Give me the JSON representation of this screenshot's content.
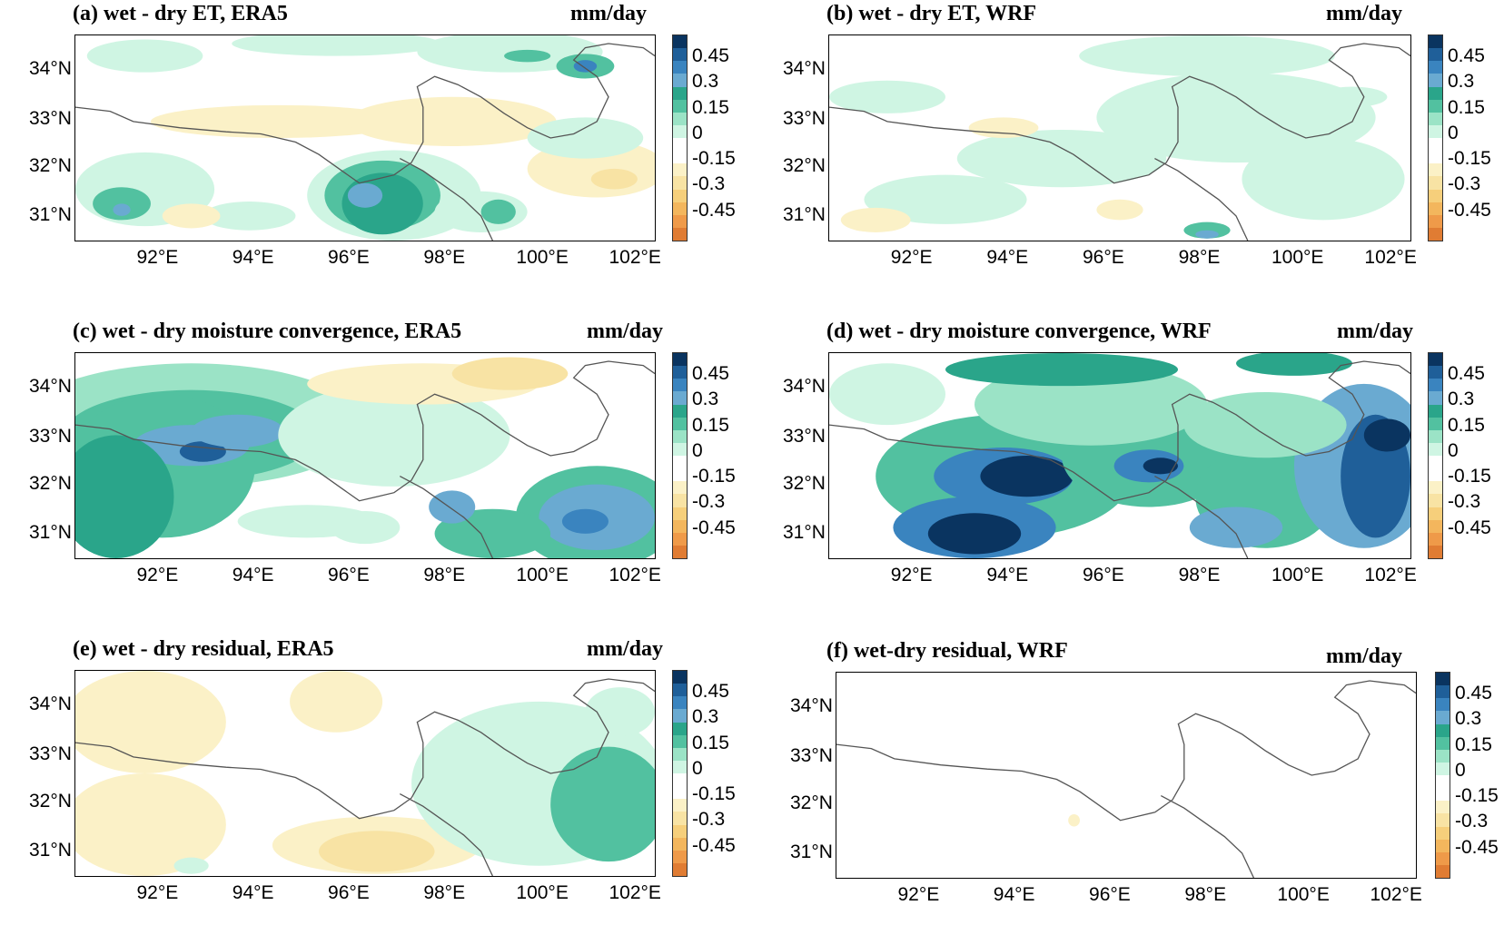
{
  "units": "mm/day",
  "lat_labels": [
    "34°N",
    "33°N",
    "32°N",
    "31°N"
  ],
  "lon_labels": [
    "92°E",
    "94°E",
    "96°E",
    "98°E",
    "100°E",
    "102°E"
  ],
  "colorbar": {
    "labels": [
      "0.45",
      "0.3",
      "0.15",
      "0",
      "-0.15",
      "-0.3",
      "-0.45"
    ],
    "colors": [
      "#0a3460",
      "#1f5f99",
      "#3a84bf",
      "#6aaad1",
      "#2aa58a",
      "#52c1a0",
      "#9be3c6",
      "#cff5e3",
      "#ffffff",
      "#ffffff",
      "#fbf1c7",
      "#f8e3a4",
      "#f6cf7b",
      "#f3b65d",
      "#ef9a49",
      "#e07c33"
    ]
  },
  "panels": [
    {
      "id": "a",
      "title": "(a)  wet - dry ET, ERA5",
      "pattern": "a"
    },
    {
      "id": "b",
      "title": "(b)  wet - dry ET, WRF",
      "pattern": "b"
    },
    {
      "id": "c",
      "title": "(c)  wet - dry moisture convergence, ERA5",
      "pattern": "c"
    },
    {
      "id": "d",
      "title": "(d)  wet - dry moisture convergence, WRF",
      "pattern": "d"
    },
    {
      "id": "e",
      "title": "(e)  wet - dry residual, ERA5",
      "pattern": "e"
    },
    {
      "id": "f",
      "title": "(f)  wet-dry residual, WRF",
      "pattern": "f"
    }
  ]
}
